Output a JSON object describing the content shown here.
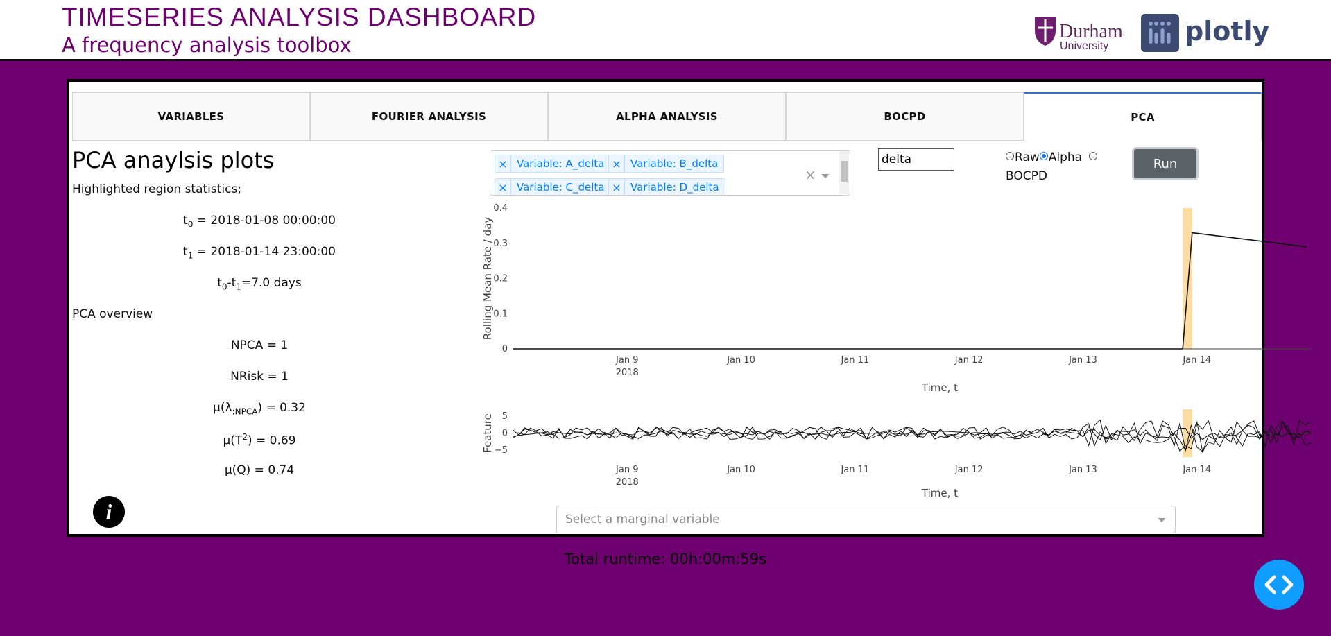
{
  "header": {
    "title": "TIMESERIES ANALYSIS DASHBOARD",
    "subtitle": "A frequency analysis toolbox",
    "logos": {
      "durham_word": "Durham",
      "durham_sub": "University",
      "plotly_word": "plotly"
    }
  },
  "tabs": [
    {
      "label": "VARIABLES",
      "active": false
    },
    {
      "label": "FOURIER ANALYSIS",
      "active": false
    },
    {
      "label": "ALPHA ANALYSIS",
      "active": false
    },
    {
      "label": "BOCPD",
      "active": false
    },
    {
      "label": "PCA",
      "active": true
    }
  ],
  "left": {
    "title": "PCA anaylsis plots",
    "highlight_heading": "Highlighted region statistics;",
    "t0_value": "= 2018-01-08 00:00:00",
    "t1_value": "= 2018-01-14 23:00:00",
    "duration_value": "=7.0 days",
    "overview_heading": "PCA overview",
    "npca": "NPCA = 1",
    "nrisk": "NRisk = 1",
    "mu_lambda_value": ") = 0.32",
    "mu_t2_value": ") = 0.69",
    "mu_q": "μ(Q) = 0.74"
  },
  "controls": {
    "variables": [
      "Variable: A_delta",
      "Variable: B_delta",
      "Variable: C_delta",
      "Variable: D_delta"
    ],
    "filter_value": "delta",
    "radio_options": [
      {
        "label": "Raw",
        "checked": false
      },
      {
        "label": "Alpha",
        "checked": true
      },
      {
        "label": "BOCPD",
        "checked": false
      }
    ],
    "run_label": "Run"
  },
  "chart_data": [
    {
      "type": "line",
      "ylabel": "Rolling Mean Rate / day",
      "xlabel": "Time, t",
      "x_ticks": [
        "Jan 9",
        "Jan 10",
        "Jan 11",
        "Jan 12",
        "Jan 13",
        "Jan 14"
      ],
      "x_tick_year": "2018",
      "y_ticks": [
        "0",
        "0.1",
        "0.2",
        "0.3",
        "0.4"
      ],
      "ylim": [
        0,
        0.4
      ],
      "highlight_region": [
        "2018-01-13 21:00",
        "2018-01-13 23:00"
      ],
      "series": [
        {
          "x": [
            "2018-01-08 00:00",
            "2018-01-13 21:00",
            "2018-01-13 23:00",
            "2018-01-14 23:00"
          ],
          "values": [
            0,
            0,
            0.33,
            0.29
          ]
        }
      ]
    },
    {
      "type": "line",
      "ylabel": "Feature",
      "xlabel": "Time, t",
      "x_ticks": [
        "Jan 9",
        "Jan 10",
        "Jan 11",
        "Jan 12",
        "Jan 13",
        "Jan 14"
      ],
      "x_tick_year": "2018",
      "y_ticks": [
        "5",
        "0",
        "−5"
      ],
      "ylim": [
        -7,
        7
      ],
      "highlight_region": [
        "2018-01-13 21:00",
        "2018-01-13 23:00"
      ]
    }
  ],
  "marginal": {
    "placeholder": "Select a marginal variable"
  },
  "runtime": "Total runtime: 00h:00m:59s"
}
